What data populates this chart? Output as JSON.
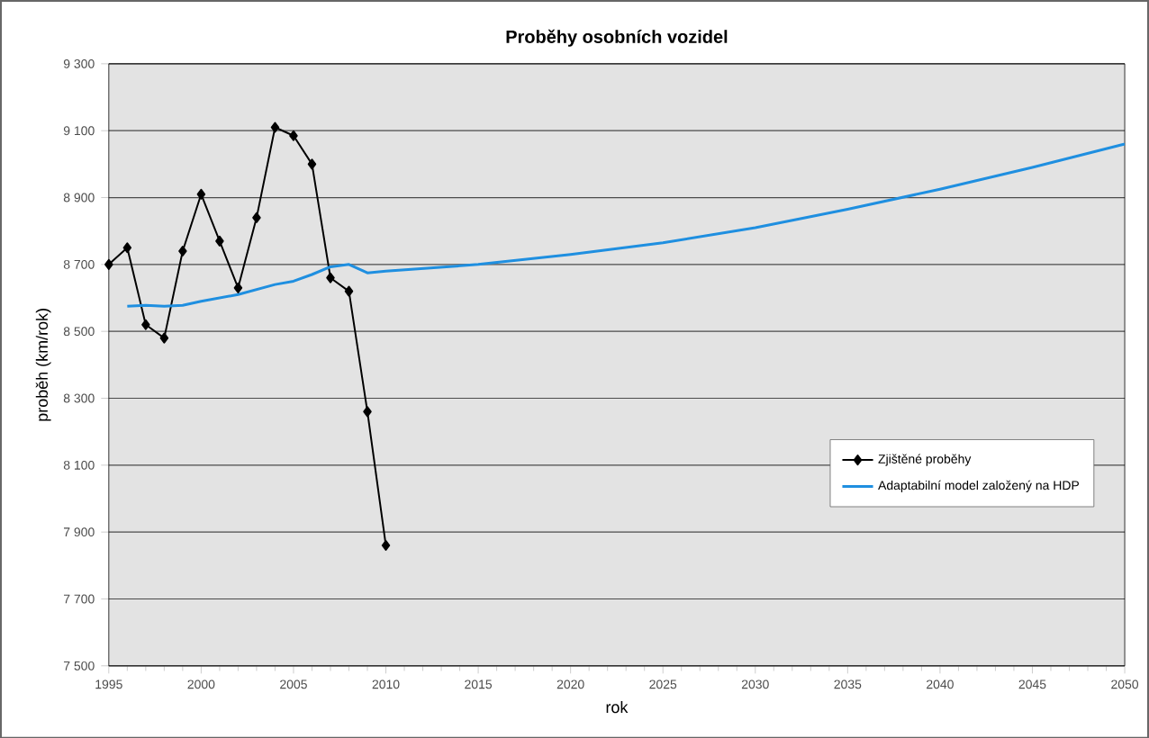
{
  "chart_data": {
    "type": "line",
    "title": "Proběhy osobních vozidel",
    "xlabel": "rok",
    "ylabel": "proběh (km/rok)",
    "xlim": [
      1995,
      2050
    ],
    "ylim": [
      7500,
      9300
    ],
    "xticks": [
      1995,
      2000,
      2005,
      2010,
      2015,
      2020,
      2025,
      2030,
      2035,
      2040,
      2045,
      2050
    ],
    "yticks": [
      {
        "value": 7500,
        "label": "7 500"
      },
      {
        "value": 7700,
        "label": "7 700"
      },
      {
        "value": 7900,
        "label": "7 900"
      },
      {
        "value": 8100,
        "label": "8 100"
      },
      {
        "value": 8300,
        "label": "8 300"
      },
      {
        "value": 8500,
        "label": "8 500"
      },
      {
        "value": 8700,
        "label": "8 700"
      },
      {
        "value": 8900,
        "label": "8 900"
      },
      {
        "value": 9100,
        "label": "9 100"
      },
      {
        "value": 9300,
        "label": "9 300"
      }
    ],
    "grid": "y",
    "legend": "right",
    "series": [
      {
        "name": "Zjištěné proběhy",
        "color": "#000000",
        "marker": "diamond",
        "x": [
          1995,
          1996,
          1997,
          1998,
          1999,
          2000,
          2001,
          2002,
          2003,
          2004,
          2005,
          2006,
          2007,
          2008,
          2009,
          2010
        ],
        "values": [
          8700,
          8750,
          8520,
          8480,
          8740,
          8910,
          8770,
          8630,
          8840,
          9110,
          9085,
          9000,
          8660,
          8620,
          8260,
          7860
        ]
      },
      {
        "name": "Adaptabilní model založený na HDP",
        "color": "#1f8fe0",
        "marker": "none",
        "x": [
          1996,
          1997,
          1998,
          1999,
          2000,
          2001,
          2002,
          2003,
          2004,
          2005,
          2006,
          2007,
          2008,
          2009,
          2010,
          2015,
          2020,
          2025,
          2030,
          2035,
          2040,
          2045,
          2050
        ],
        "values": [
          8575,
          8578,
          8575,
          8578,
          8590,
          8600,
          8610,
          8625,
          8640,
          8650,
          8670,
          8693,
          8700,
          8675,
          8680,
          8700,
          8730,
          8765,
          8810,
          8865,
          8925,
          8990,
          9060
        ]
      }
    ]
  }
}
